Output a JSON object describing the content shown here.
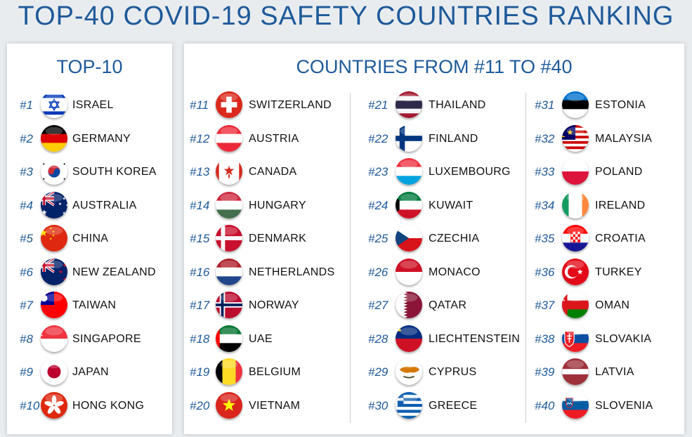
{
  "title": "TOP-40 COVID-19 SAFETY COUNTRIES RANKING",
  "top10": {
    "heading": "TOP-10",
    "items": [
      {
        "rank": "#1",
        "name": "ISRAEL",
        "flag": "israel-flag-icon"
      },
      {
        "rank": "#2",
        "name": "GERMANY",
        "flag": "germany-flag-icon"
      },
      {
        "rank": "#3",
        "name": "SOUTH KOREA",
        "flag": "south-korea-flag-icon"
      },
      {
        "rank": "#4",
        "name": "AUSTRALIA",
        "flag": "australia-flag-icon"
      },
      {
        "rank": "#5",
        "name": "CHINA",
        "flag": "china-flag-icon"
      },
      {
        "rank": "#6",
        "name": "NEW ZEALAND",
        "flag": "new-zealand-flag-icon"
      },
      {
        "rank": "#7",
        "name": "TAIWAN",
        "flag": "taiwan-flag-icon"
      },
      {
        "rank": "#8",
        "name": "SINGAPORE",
        "flag": "singapore-flag-icon"
      },
      {
        "rank": "#9",
        "name": "JAPAN",
        "flag": "japan-flag-icon"
      },
      {
        "rank": "#10",
        "name": "HONG KONG",
        "flag": "hong-kong-flag-icon"
      }
    ]
  },
  "rest": {
    "heading": "COUNTRIES FROM #11 TO #40",
    "columns": [
      [
        {
          "rank": "#11",
          "name": "SWITZERLAND",
          "flag": "switzerland-flag-icon"
        },
        {
          "rank": "#12",
          "name": "AUSTRIA",
          "flag": "austria-flag-icon"
        },
        {
          "rank": "#13",
          "name": "CANADA",
          "flag": "canada-flag-icon"
        },
        {
          "rank": "#14",
          "name": "HUNGARY",
          "flag": "hungary-flag-icon"
        },
        {
          "rank": "#15",
          "name": "DENMARK",
          "flag": "denmark-flag-icon"
        },
        {
          "rank": "#16",
          "name": "NETHERLANDS",
          "flag": "netherlands-flag-icon"
        },
        {
          "rank": "#17",
          "name": "NORWAY",
          "flag": "norway-flag-icon"
        },
        {
          "rank": "#18",
          "name": "UAE",
          "flag": "uae-flag-icon"
        },
        {
          "rank": "#19",
          "name": "BELGIUM",
          "flag": "belgium-flag-icon"
        },
        {
          "rank": "#20",
          "name": "VIETNAM",
          "flag": "vietnam-flag-icon"
        }
      ],
      [
        {
          "rank": "#21",
          "name": "THAILAND",
          "flag": "thailand-flag-icon"
        },
        {
          "rank": "#22",
          "name": "FINLAND",
          "flag": "finland-flag-icon"
        },
        {
          "rank": "#23",
          "name": "LUXEMBOURG",
          "flag": "luxembourg-flag-icon"
        },
        {
          "rank": "#24",
          "name": "KUWAIT",
          "flag": "kuwait-flag-icon"
        },
        {
          "rank": "#25",
          "name": "CZECHIA",
          "flag": "czechia-flag-icon"
        },
        {
          "rank": "#26",
          "name": "MONACO",
          "flag": "monaco-flag-icon"
        },
        {
          "rank": "#27",
          "name": "QATAR",
          "flag": "qatar-flag-icon"
        },
        {
          "rank": "#28",
          "name": "LIECHTENSTEIN",
          "flag": "liechtenstein-flag-icon"
        },
        {
          "rank": "#29",
          "name": "CYPRUS",
          "flag": "cyprus-flag-icon"
        },
        {
          "rank": "#30",
          "name": "GREECE",
          "flag": "greece-flag-icon"
        }
      ],
      [
        {
          "rank": "#31",
          "name": "ESTONIA",
          "flag": "estonia-flag-icon"
        },
        {
          "rank": "#32",
          "name": "MALAYSIA",
          "flag": "malaysia-flag-icon"
        },
        {
          "rank": "#33",
          "name": "POLAND",
          "flag": "poland-flag-icon"
        },
        {
          "rank": "#34",
          "name": "IRELAND",
          "flag": "ireland-flag-icon"
        },
        {
          "rank": "#35",
          "name": "CROATIA",
          "flag": "croatia-flag-icon"
        },
        {
          "rank": "#36",
          "name": "TURKEY",
          "flag": "turkey-flag-icon"
        },
        {
          "rank": "#37",
          "name": "OMAN",
          "flag": "oman-flag-icon"
        },
        {
          "rank": "#38",
          "name": "SLOVAKIA",
          "flag": "slovakia-flag-icon"
        },
        {
          "rank": "#39",
          "name": "LATVIA",
          "flag": "latvia-flag-icon"
        },
        {
          "rank": "#40",
          "name": "SLOVENIA",
          "flag": "slovenia-flag-icon"
        }
      ]
    ]
  },
  "colors": {
    "accent": "#1e5a9a",
    "text": "#111111",
    "panel": "#ffffff",
    "background": "#e9ecef"
  }
}
